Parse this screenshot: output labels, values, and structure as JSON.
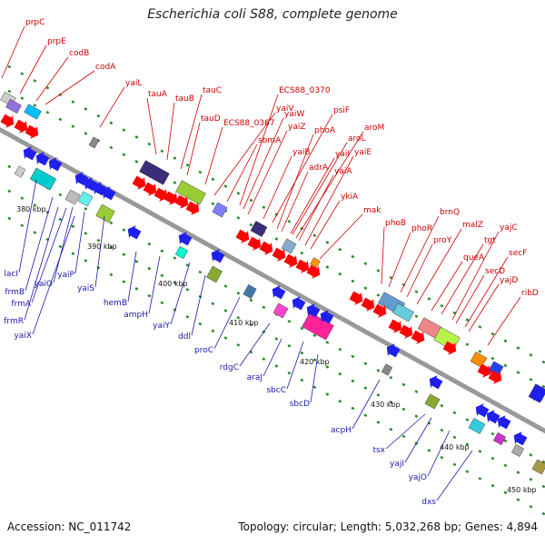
{
  "title": "Escherichia coli S88, complete genome",
  "footer": {
    "accession": "Accession: NC_011742",
    "summary": "Topology: circular; Length: 5,032,268 bp; Genes: 4,894"
  },
  "colors": {
    "forward_label": "#cc0000",
    "reverse_label": "#1a1aaa",
    "backbone": "#999999",
    "cds_arrow": "#ff0000"
  },
  "kbp_ticks": [
    "380 kbp",
    "390 kbp",
    "400 kbp",
    "410 kbp",
    "420 kbp",
    "430 kbp",
    "440 kbp",
    "450 kbp"
  ],
  "forward_genes": [
    "prpC",
    "prpE",
    "codB",
    "codA",
    "yaiL",
    "tauA",
    "tauB",
    "tauC",
    "tauD",
    "ECS88_0367",
    "yaiV",
    "ECS88_0370",
    "sbmA",
    "yaiW",
    "yaiZ",
    "yaiB",
    "psiF",
    "phoA",
    "adrA",
    "yaiI",
    "aroL",
    "aroM",
    "yaiA",
    "yaiE",
    "ykiA",
    "mak",
    "phoB",
    "phoR",
    "brnQ",
    "proY",
    "malZ",
    "queA",
    "tgt",
    "yajC",
    "secD",
    "secF",
    "yajD",
    "ribD"
  ],
  "reverse_genes": [
    "lacI",
    "frmB",
    "yaiO",
    "yaiP",
    "frmA",
    "yaiS",
    "frmR",
    "yaiX",
    "hemB",
    "ampH",
    "yaiY",
    "ddl",
    "proC",
    "rdgC",
    "araJ",
    "sbcC",
    "sbcD",
    "acpH",
    "tsx",
    "yajI",
    "yajO",
    "dxs"
  ]
}
